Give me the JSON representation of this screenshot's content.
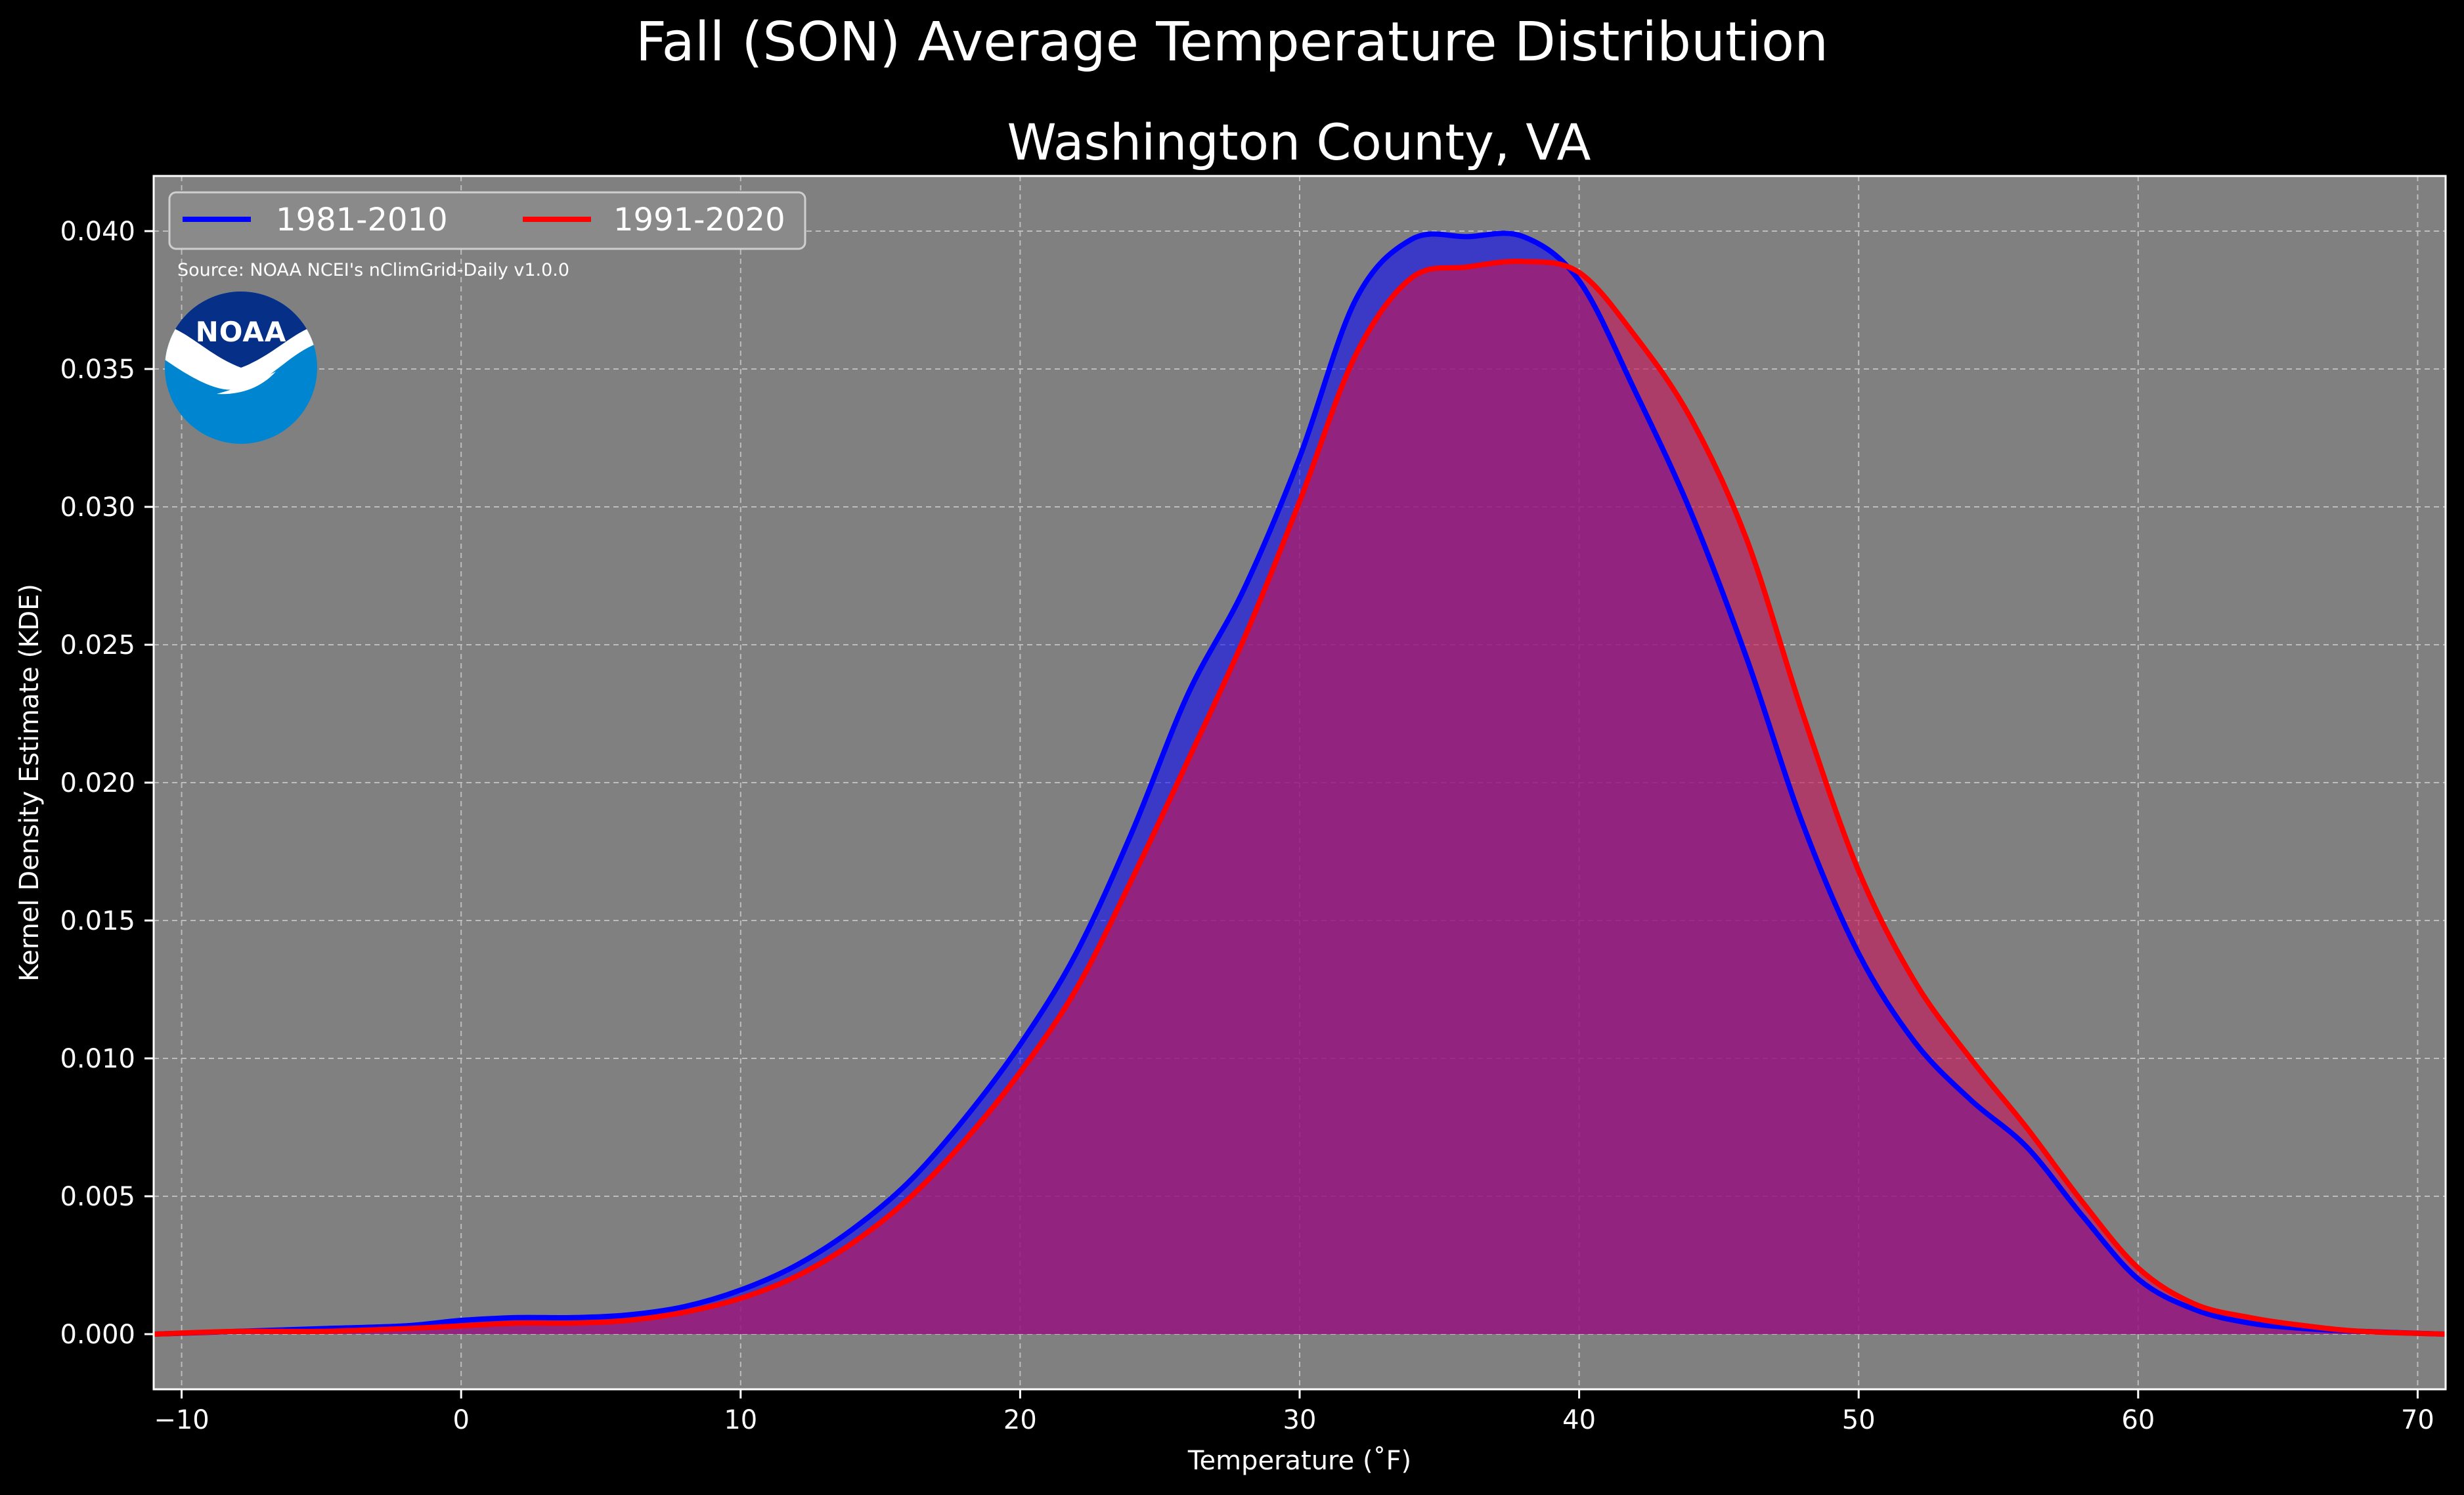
{
  "chart_data": {
    "type": "area",
    "title": "Fall (SON) Average Temperature Distribution",
    "subtitle": "Washington County, VA",
    "xlabel": "Temperature (˚F)",
    "ylabel": "Kernel Density Estimate (KDE)",
    "xlim": [
      -11,
      71
    ],
    "ylim": [
      -0.002,
      0.042
    ],
    "xticks": [
      -10,
      0,
      10,
      20,
      30,
      40,
      50,
      60,
      70
    ],
    "xtick_labels": [
      "−10",
      "0",
      "10",
      "20",
      "30",
      "40",
      "50",
      "60",
      "70"
    ],
    "yticks": [
      0.0,
      0.005,
      0.01,
      0.015,
      0.02,
      0.025,
      0.03,
      0.035,
      0.04
    ],
    "ytick_labels": [
      "0.000",
      "0.005",
      "0.010",
      "0.015",
      "0.020",
      "0.025",
      "0.030",
      "0.035",
      "0.040"
    ],
    "grid": true,
    "legend_placement": "top-left",
    "background_color": "#808080",
    "series": [
      {
        "name": "1981-2010",
        "color": "#0000ff",
        "fill_color": "#0000ff",
        "x": [
          -11,
          -8,
          -5,
          -2,
          0,
          2,
          4,
          6,
          8,
          10,
          12,
          14,
          16,
          18,
          20,
          22,
          24,
          26,
          28,
          30,
          32,
          34,
          36,
          38,
          40,
          42,
          44,
          46,
          48,
          50,
          52,
          54,
          56,
          58,
          60,
          62,
          64,
          66,
          68,
          71
        ],
        "values": [
          0.0,
          0.0001,
          0.0002,
          0.0003,
          0.0005,
          0.0006,
          0.0006,
          0.0007,
          0.001,
          0.0016,
          0.0025,
          0.0038,
          0.0055,
          0.0078,
          0.0105,
          0.0138,
          0.0182,
          0.0232,
          0.027,
          0.0318,
          0.0375,
          0.0397,
          0.0398,
          0.0398,
          0.0382,
          0.0342,
          0.0298,
          0.0245,
          0.0185,
          0.0138,
          0.0106,
          0.0085,
          0.0068,
          0.0043,
          0.002,
          0.0009,
          0.0004,
          0.0002,
          0.0001,
          0.0
        ]
      },
      {
        "name": "1991-2020",
        "color": "#ff0000",
        "fill_color": "#c2185b",
        "x": [
          -11,
          -8,
          -5,
          -2,
          0,
          2,
          4,
          6,
          8,
          10,
          12,
          14,
          16,
          18,
          20,
          22,
          24,
          26,
          28,
          30,
          32,
          34,
          36,
          38,
          40,
          42,
          44,
          46,
          48,
          50,
          52,
          54,
          56,
          58,
          60,
          62,
          64,
          66,
          68,
          71
        ],
        "values": [
          0.0,
          0.0001,
          0.0001,
          0.0002,
          0.0003,
          0.0004,
          0.0004,
          0.0005,
          0.0008,
          0.0013,
          0.0021,
          0.0033,
          0.0049,
          0.007,
          0.0095,
          0.0125,
          0.0165,
          0.0208,
          0.0252,
          0.0302,
          0.0355,
          0.0383,
          0.0387,
          0.0389,
          0.0385,
          0.0362,
          0.0332,
          0.0288,
          0.0225,
          0.0168,
          0.0128,
          0.01,
          0.0075,
          0.0048,
          0.0024,
          0.0011,
          0.0006,
          0.0003,
          0.0001,
          0.0
        ]
      }
    ]
  },
  "annotations": {
    "source": "Source: NOAA NCEI's nClimGrid-Daily v1.0.0",
    "logo_text": "NOAA"
  }
}
